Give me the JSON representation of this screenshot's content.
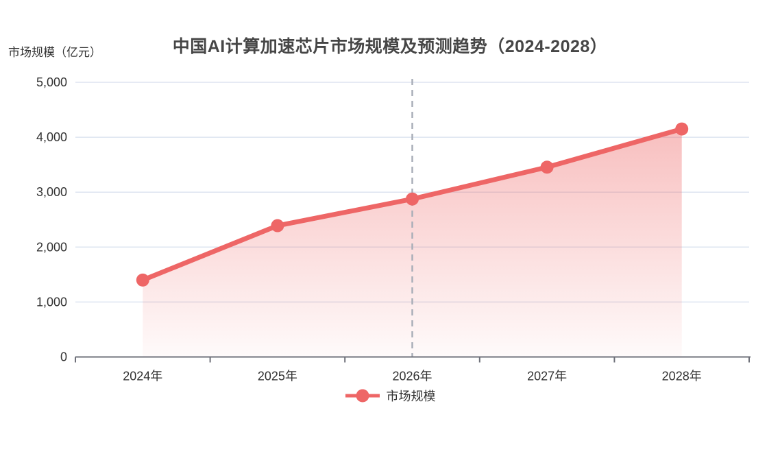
{
  "title": "中国AI计算加速芯片市场规模及预测趋势（2024-2028）",
  "y_axis_name": "市场规模（亿元）",
  "legend": {
    "label": "市场规模"
  },
  "colors": {
    "line": "#ee6666",
    "marker": "#ee6666",
    "area_top": "rgba(238,102,102,0.42)",
    "area_bottom": "rgba(238,102,102,0.03)",
    "grid": "#dde4f0",
    "axis": "#6e7079",
    "dashed_guide": "#a9aeb8",
    "title_text": "#464646",
    "label_text": "#333333"
  },
  "chart_data": {
    "type": "line",
    "title": "中国AI计算加速芯片市场规模及预测趋势（2024-2028）",
    "xlabel": "",
    "ylabel": "市场规模（亿元）",
    "categories": [
      "2024年",
      "2025年",
      "2026年",
      "2027年",
      "2028年"
    ],
    "series": [
      {
        "name": "市场规模",
        "values": [
          1400,
          2390,
          2875,
          3455,
          4150
        ]
      }
    ],
    "ylim": [
      0,
      5000
    ],
    "y_tick_labels": [
      "0",
      "1,000",
      "2,000",
      "3,000",
      "4,000",
      "5,000"
    ],
    "y_tick_values": [
      0,
      1000,
      2000,
      3000,
      4000,
      5000
    ],
    "grid": true,
    "legend_position": "bottom",
    "annotations": [
      {
        "type": "vline",
        "at_category": "2026年",
        "style": "dashed",
        "note": "forecast divider"
      }
    ]
  }
}
